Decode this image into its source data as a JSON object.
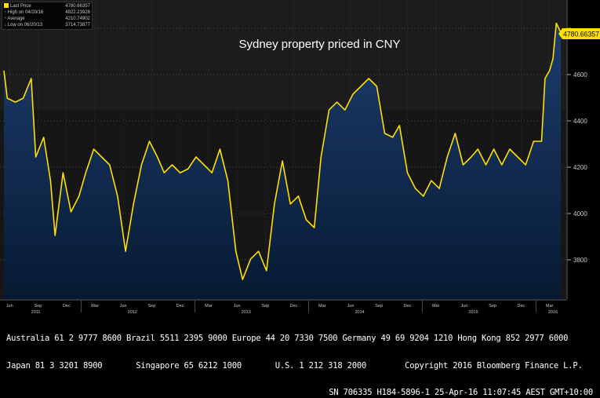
{
  "title": "Sydney property priced in CNY",
  "legend": [
    {
      "label": "Last Price",
      "value": "4780.66357"
    },
    {
      "label": "High on 04/20/16",
      "value": "4822.23926"
    },
    {
      "label": "Average",
      "value": "4210.74902"
    },
    {
      "label": "Low on 06/20/13",
      "value": "3714.73877"
    }
  ],
  "last_price_tag": "4780.66357",
  "colors": {
    "line": "#ffe000",
    "fill_top": "#1d3d6e",
    "fill_bottom": "#071a33",
    "bg": "#161616"
  },
  "chart_data": {
    "type": "area",
    "title": "Sydney property priced in CNY",
    "xlabel": "",
    "ylabel": "",
    "ylim": [
      3620,
      4850
    ],
    "xlim": [
      2011.34,
      2016.34
    ],
    "yticks": [
      3800,
      4000,
      4200,
      4400,
      4600,
      4800
    ],
    "ytick_labels": [
      "3800",
      "4000",
      "4200",
      "4400",
      "4600",
      "4800"
    ],
    "month_ticks": [
      {
        "label": "Jun",
        "x": 2011.42
      },
      {
        "label": "Sep",
        "x": 2011.67
      },
      {
        "label": "Dec",
        "x": 2011.92
      },
      {
        "label": "Mar",
        "x": 2012.17
      },
      {
        "label": "Jun",
        "x": 2012.42
      },
      {
        "label": "Sep",
        "x": 2012.67
      },
      {
        "label": "Dec",
        "x": 2012.92
      },
      {
        "label": "Mar",
        "x": 2013.17
      },
      {
        "label": "Jun",
        "x": 2013.42
      },
      {
        "label": "Sep",
        "x": 2013.67
      },
      {
        "label": "Dec",
        "x": 2013.92
      },
      {
        "label": "Mar",
        "x": 2014.17
      },
      {
        "label": "Jun",
        "x": 2014.42
      },
      {
        "label": "Sep",
        "x": 2014.67
      },
      {
        "label": "Dec",
        "x": 2014.92
      },
      {
        "label": "Mar",
        "x": 2015.17
      },
      {
        "label": "Jun",
        "x": 2015.42
      },
      {
        "label": "Sep",
        "x": 2015.67
      },
      {
        "label": "Dec",
        "x": 2015.92
      },
      {
        "label": "Mar",
        "x": 2016.17
      }
    ],
    "year_ticks": [
      {
        "label": "2011",
        "x": 2011.65
      },
      {
        "label": "2012",
        "x": 2012.5
      },
      {
        "label": "2013",
        "x": 2013.5
      },
      {
        "label": "2014",
        "x": 2014.5
      },
      {
        "label": "2015",
        "x": 2015.5
      },
      {
        "label": "2016",
        "x": 2016.2
      }
    ],
    "grid": true,
    "legend_position": "top-left",
    "series": [
      {
        "name": "Last Price",
        "x": [
          2011.37,
          2011.4,
          2011.47,
          2011.54,
          2011.61,
          2011.65,
          2011.72,
          2011.78,
          2011.82,
          2011.89,
          2011.96,
          2012.03,
          2012.09,
          2012.16,
          2012.23,
          2012.3,
          2012.37,
          2012.44,
          2012.51,
          2012.58,
          2012.65,
          2012.72,
          2012.78,
          2012.85,
          2012.92,
          2012.99,
          2013.06,
          2013.13,
          2013.2,
          2013.27,
          2013.34,
          2013.41,
          2013.47,
          2013.54,
          2013.61,
          2013.68,
          2013.75,
          2013.82,
          2013.89,
          2013.96,
          2014.03,
          2014.1,
          2014.16,
          2014.23,
          2014.3,
          2014.37,
          2014.44,
          2014.51,
          2014.58,
          2014.65,
          2014.72,
          2014.79,
          2014.85,
          2014.92,
          2014.99,
          2015.06,
          2015.13,
          2015.2,
          2015.27,
          2015.34,
          2015.41,
          2015.48,
          2015.54,
          2015.61,
          2015.68,
          2015.75,
          2015.82,
          2015.89,
          2015.96,
          2016.03,
          2016.1,
          2016.13,
          2016.17,
          2016.2,
          2016.23,
          2016.27
        ],
        "y": [
          4617,
          4498,
          4481,
          4498,
          4583,
          4244,
          4329,
          4142,
          3905,
          4176,
          4007,
          4075,
          4176,
          4278,
          4244,
          4210,
          4075,
          3837,
          4041,
          4210,
          4312,
          4244,
          4176,
          4210,
          4176,
          4193,
          4244,
          4210,
          4176,
          4278,
          4142,
          3837,
          3715,
          3803,
          3837,
          3753,
          4041,
          4227,
          4041,
          4075,
          3973,
          3939,
          4244,
          4447,
          4481,
          4447,
          4515,
          4549,
          4583,
          4549,
          4346,
          4329,
          4380,
          4176,
          4108,
          4075,
          4142,
          4108,
          4244,
          4346,
          4210,
          4244,
          4278,
          4210,
          4278,
          4210,
          4278,
          4244,
          4210,
          4312,
          4312,
          4583,
          4617,
          4668,
          4822,
          4781
        ]
      }
    ]
  },
  "footer": {
    "line1": "Australia 61 2 9777 8600 Brazil 5511 2395 9000 Europe 44 20 7330 7500 Germany 49 69 9204 1210 Hong Kong 852 2977 6000",
    "line2": "Japan 81 3 3201 8900       Singapore 65 6212 1000       U.S. 1 212 318 2000        Copyright 2016 Bloomberg Finance L.P.",
    "line3": "SN 706335 H184-5896-1 25-Apr-16 11:07:45 AEST GMT+10:00"
  }
}
